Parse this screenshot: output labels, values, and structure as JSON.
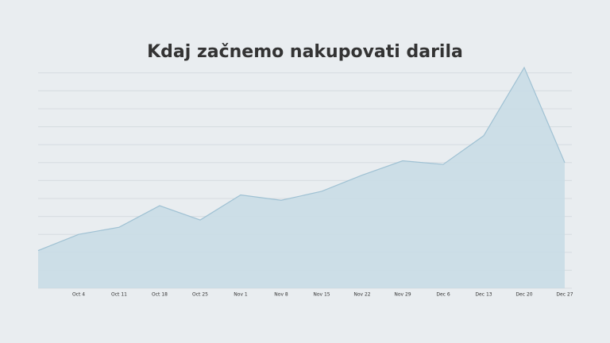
{
  "chart_data": {
    "type": "area",
    "title": "Kdaj začnemo nakupovati darila",
    "categories": [
      null,
      "Oct 4",
      "Oct 11",
      "Oct 18",
      "Oct 25",
      "Nov 1",
      "Nov 8",
      "Nov 15",
      "Nov 22",
      "Nov 29",
      "Dec 6",
      "Dec 13",
      "Dec 20",
      "Dec 27"
    ],
    "values": [
      2.1,
      3.0,
      3.4,
      4.6,
      3.8,
      5.2,
      4.9,
      5.4,
      6.3,
      7.1,
      6.9,
      8.5,
      12.3,
      7.0
    ],
    "color": "#c9dbe6",
    "line_color": "#9fc1d3",
    "ylim": [
      0,
      12.5
    ],
    "yticks": [
      0,
      1,
      2,
      3,
      4,
      5,
      6,
      7,
      8,
      9,
      10,
      11,
      12
    ],
    "grid": true
  }
}
